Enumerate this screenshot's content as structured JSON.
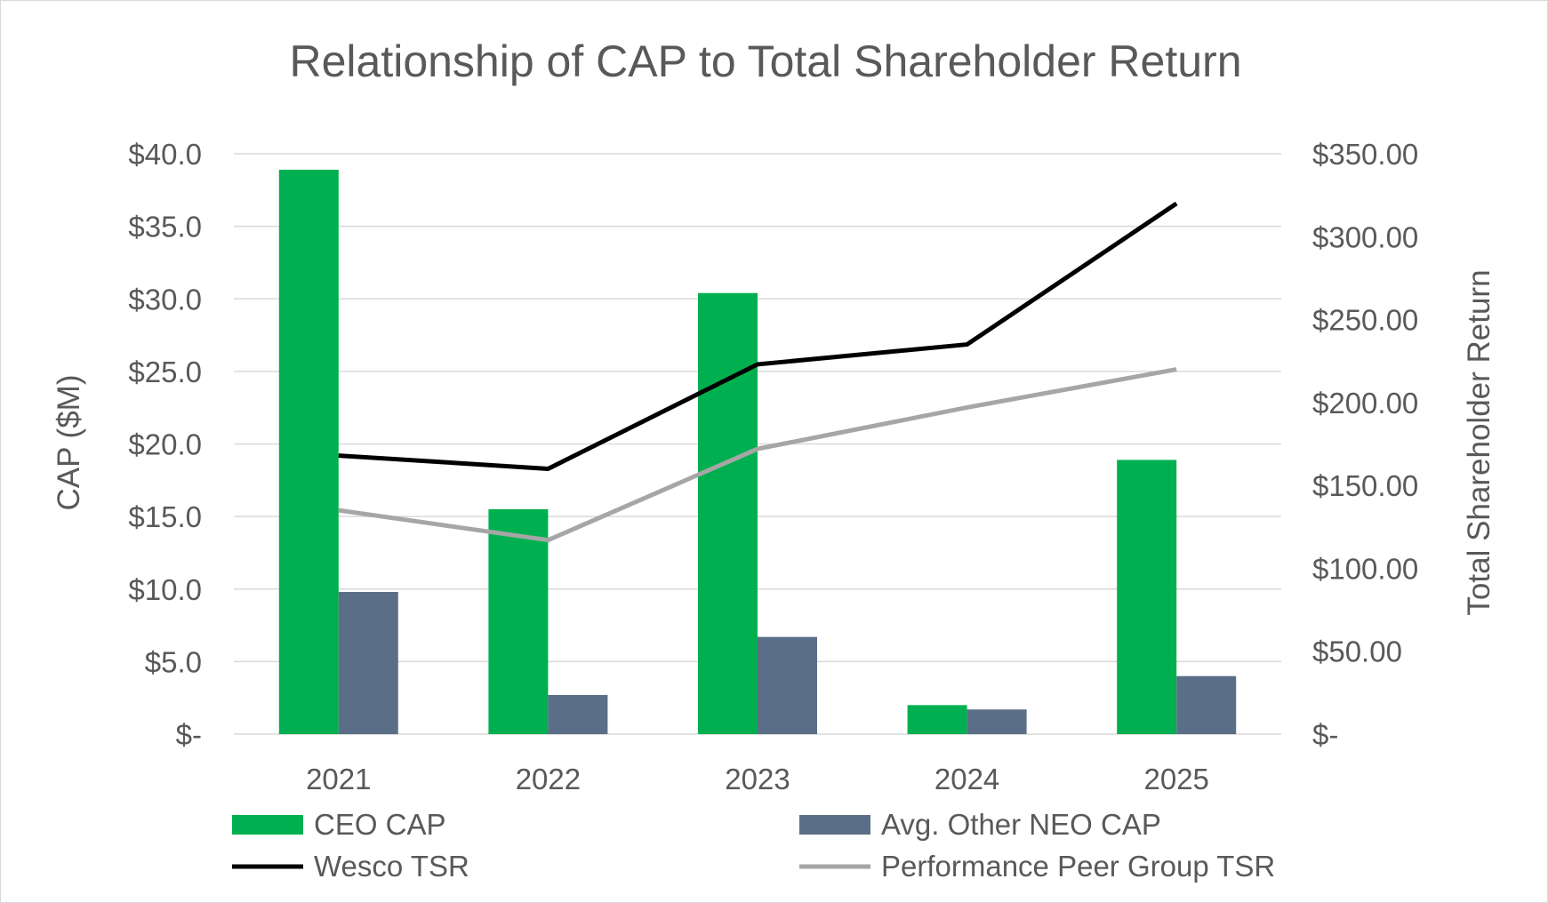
{
  "chart_data": {
    "type": "bar",
    "title": "Relationship of CAP to Total Shareholder Return",
    "categories": [
      "2021",
      "2022",
      "2023",
      "2024",
      "2025"
    ],
    "ylabel": "CAP ($M)",
    "y2label": "Total Shareholder Return",
    "ylim": [
      0,
      40
    ],
    "y2lim": [
      0,
      350
    ],
    "yticks": [
      "$-",
      "$5.0",
      "$10.0",
      "$15.0",
      "$20.0",
      "$25.0",
      "$30.0",
      "$35.0",
      "$40.0"
    ],
    "y2ticks": [
      "$-",
      "$50.00",
      "$100.00",
      "$150.00",
      "$200.00",
      "$250.00",
      "$300.00",
      "$350.00"
    ],
    "grid": true,
    "legend_position": "bottom",
    "series": [
      {
        "name": "CEO CAP",
        "kind": "bar",
        "axis": "left",
        "color": "#00b050",
        "values": [
          38.9,
          15.5,
          30.4,
          2.0,
          18.9
        ]
      },
      {
        "name": "Avg. Other NEO CAP",
        "kind": "bar",
        "axis": "left",
        "color": "#5b6e88",
        "values": [
          9.8,
          2.7,
          6.7,
          1.7,
          4.0
        ]
      },
      {
        "name": "Wesco TSR",
        "kind": "line",
        "axis": "right",
        "color": "#000000",
        "values": [
          168,
          160,
          223,
          235,
          320
        ]
      },
      {
        "name": "Performance Peer Group TSR",
        "kind": "line",
        "axis": "right",
        "color": "#a6a6a6",
        "values": [
          135,
          117,
          172,
          197,
          220
        ]
      }
    ]
  }
}
